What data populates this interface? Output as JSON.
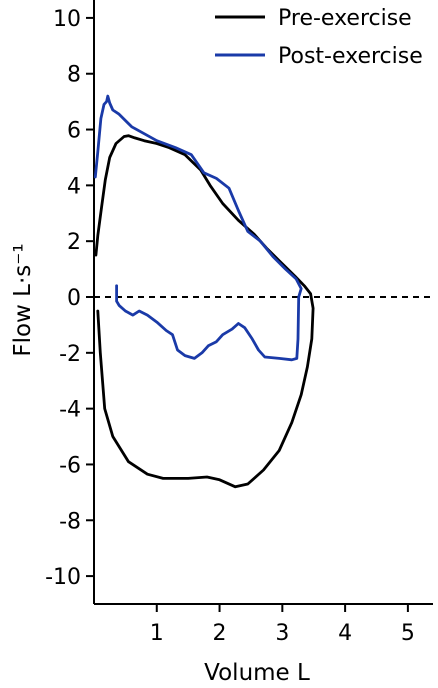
{
  "chart_data": {
    "type": "line",
    "xlabel": "Volume L",
    "ylabel": "Flow L·s⁻¹",
    "xlim": [
      0,
      5.4
    ],
    "ylim": [
      -11,
      11
    ],
    "xticks": [
      1,
      2,
      3,
      4,
      5
    ],
    "yticks": [
      10,
      8,
      6,
      4,
      2,
      0,
      -2,
      -4,
      -6,
      -8,
      -10
    ],
    "reference_line": {
      "y": 0,
      "style": "dashed",
      "color": "#000000"
    },
    "legend": {
      "placement": "top-right"
    },
    "grid": false,
    "series": [
      {
        "name": "Pre-exercise",
        "color": "#000000",
        "points": [
          [
            0.03,
            1.5
          ],
          [
            0.06,
            2.2
          ],
          [
            0.12,
            3.2
          ],
          [
            0.18,
            4.2
          ],
          [
            0.25,
            5.0
          ],
          [
            0.35,
            5.5
          ],
          [
            0.48,
            5.75
          ],
          [
            0.55,
            5.78
          ],
          [
            0.65,
            5.7
          ],
          [
            0.8,
            5.6
          ],
          [
            1.0,
            5.5
          ],
          [
            1.2,
            5.35
          ],
          [
            1.45,
            5.1
          ],
          [
            1.7,
            4.55
          ],
          [
            1.85,
            4.0
          ],
          [
            2.05,
            3.35
          ],
          [
            2.3,
            2.75
          ],
          [
            2.55,
            2.25
          ],
          [
            2.75,
            1.75
          ],
          [
            2.95,
            1.3
          ],
          [
            3.2,
            0.75
          ],
          [
            3.35,
            0.4
          ],
          [
            3.45,
            0.12
          ],
          [
            3.49,
            -0.4
          ],
          [
            3.47,
            -1.5
          ],
          [
            3.4,
            -2.5
          ],
          [
            3.3,
            -3.5
          ],
          [
            3.15,
            -4.5
          ],
          [
            2.95,
            -5.5
          ],
          [
            2.7,
            -6.2
          ],
          [
            2.45,
            -6.7
          ],
          [
            2.25,
            -6.8
          ],
          [
            2.0,
            -6.55
          ],
          [
            1.8,
            -6.45
          ],
          [
            1.5,
            -6.5
          ],
          [
            1.1,
            -6.5
          ],
          [
            0.85,
            -6.35
          ],
          [
            0.55,
            -5.9
          ],
          [
            0.3,
            -5.0
          ],
          [
            0.17,
            -4.0
          ],
          [
            0.1,
            -2.0
          ],
          [
            0.06,
            -0.5
          ]
        ]
      },
      {
        "name": "Post-exercise",
        "color": "#1a3aa8",
        "points": [
          [
            0.02,
            4.3
          ],
          [
            0.06,
            5.2
          ],
          [
            0.11,
            6.4
          ],
          [
            0.16,
            6.9
          ],
          [
            0.2,
            7.0
          ],
          [
            0.22,
            7.2
          ],
          [
            0.25,
            6.95
          ],
          [
            0.3,
            6.7
          ],
          [
            0.4,
            6.55
          ],
          [
            0.6,
            6.1
          ],
          [
            0.8,
            5.85
          ],
          [
            1.0,
            5.6
          ],
          [
            1.3,
            5.35
          ],
          [
            1.55,
            5.1
          ],
          [
            1.75,
            4.45
          ],
          [
            1.95,
            4.25
          ],
          [
            2.15,
            3.9
          ],
          [
            2.3,
            3.1
          ],
          [
            2.45,
            2.35
          ],
          [
            2.65,
            2.0
          ],
          [
            2.85,
            1.45
          ],
          [
            3.05,
            1.0
          ],
          [
            3.22,
            0.65
          ],
          [
            3.3,
            0.3
          ],
          [
            3.26,
            0.0
          ],
          [
            3.25,
            -1.5
          ],
          [
            3.23,
            -2.2
          ],
          [
            3.15,
            -2.25
          ],
          [
            2.95,
            -2.2
          ],
          [
            2.72,
            -2.15
          ],
          [
            2.62,
            -1.9
          ],
          [
            2.52,
            -1.5
          ],
          [
            2.4,
            -1.1
          ],
          [
            2.3,
            -0.95
          ],
          [
            2.2,
            -1.15
          ],
          [
            2.05,
            -1.35
          ],
          [
            1.95,
            -1.6
          ],
          [
            1.82,
            -1.75
          ],
          [
            1.72,
            -2.0
          ],
          [
            1.6,
            -2.2
          ],
          [
            1.45,
            -2.1
          ],
          [
            1.33,
            -1.9
          ],
          [
            1.25,
            -1.35
          ],
          [
            1.15,
            -1.2
          ],
          [
            1.0,
            -0.9
          ],
          [
            0.85,
            -0.65
          ],
          [
            0.72,
            -0.5
          ],
          [
            0.62,
            -0.65
          ],
          [
            0.5,
            -0.5
          ],
          [
            0.4,
            -0.3
          ],
          [
            0.36,
            -0.15
          ],
          [
            0.36,
            0.4
          ]
        ]
      }
    ]
  }
}
